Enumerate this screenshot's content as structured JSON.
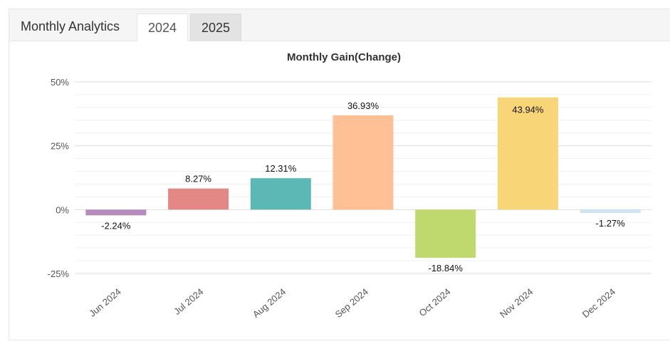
{
  "header": {
    "title": "Monthly Analytics",
    "tabs": [
      {
        "label": "2024",
        "active": true
      },
      {
        "label": "2025",
        "active": false
      }
    ]
  },
  "chart_data": {
    "type": "bar",
    "title": "Monthly Gain(Change)",
    "categories": [
      "Jun 2024",
      "Jul 2024",
      "Aug 2024",
      "Sep 2024",
      "Oct 2024",
      "Nov 2024",
      "Dec 2024"
    ],
    "values": [
      -2.24,
      8.27,
      12.31,
      36.93,
      -18.84,
      43.94,
      -1.27
    ],
    "data_labels": [
      "-2.24%",
      "8.27%",
      "12.31%",
      "36.93%",
      "-18.84%",
      "43.94%",
      "-1.27%"
    ],
    "colors": [
      "#b58bbd",
      "#e48886",
      "#5cb8b5",
      "#ffc095",
      "#bfd96f",
      "#f8d678",
      "#cfe3f5"
    ],
    "y_ticks": [
      {
        "value": 50,
        "label": "50%"
      },
      {
        "value": 25,
        "label": "25%"
      },
      {
        "value": 0,
        "label": "0%"
      },
      {
        "value": -25,
        "label": "-25%"
      }
    ],
    "ylim": [
      -25,
      50
    ],
    "grid": true,
    "xlabel": "",
    "ylabel": "",
    "legend": "none"
  }
}
